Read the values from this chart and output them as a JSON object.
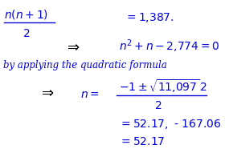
{
  "bg_color": "#ffffff",
  "blue": "#0000dd",
  "figsize": [
    2.8,
    2.07
  ],
  "dpi": 100
}
